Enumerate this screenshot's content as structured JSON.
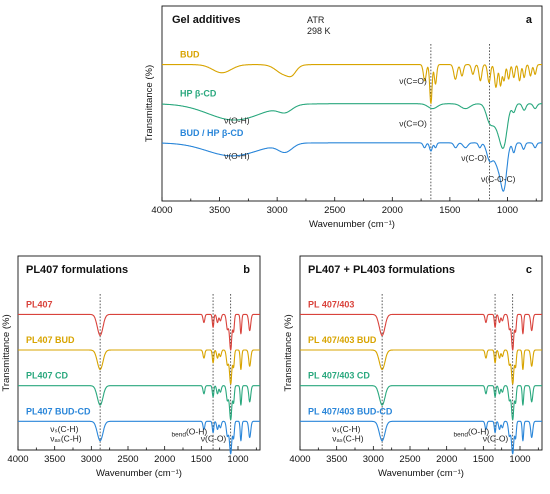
{
  "colors": {
    "red": "#d9433c",
    "yellow": "#d8a400",
    "green": "#2aa87e",
    "blue": "#2a86d9"
  },
  "chart_data": [
    {
      "type": "line",
      "panel": "a",
      "title": "Gel additives",
      "note_lines": [
        "ATR",
        "298 K"
      ],
      "xlabel": "Wavenumber (cm⁻¹)",
      "ylabel": "Transmittance (%)",
      "xlim": [
        4000,
        700
      ],
      "x_reversed": true,
      "xticks": [
        4000,
        3500,
        3000,
        2500,
        2000,
        1500,
        1000
      ],
      "series": [
        {
          "name": "BUD",
          "color": "yellow",
          "baseline": 0.8,
          "peaks": [
            [
              3480,
              0.05,
              80
            ],
            [
              2935,
              0.06,
              70
            ],
            [
              2870,
              0.03,
              35
            ],
            [
              1718,
              0.1,
              12
            ],
            [
              1665,
              0.24,
              10
            ],
            [
              1625,
              0.12,
              10
            ],
            [
              1452,
              0.09,
              14
            ],
            [
              1395,
              0.07,
              12
            ],
            [
              1300,
              0.06,
              12
            ],
            [
              1235,
              0.1,
              12
            ],
            [
              1160,
              0.11,
              12
            ],
            [
              1100,
              0.14,
              12
            ],
            [
              1060,
              0.13,
              10
            ],
            [
              1030,
              0.1,
              10
            ],
            [
              990,
              0.09,
              10
            ],
            [
              945,
              0.08,
              10
            ],
            [
              895,
              0.1,
              10
            ],
            [
              855,
              0.08,
              10
            ],
            [
              800,
              0.07,
              10
            ],
            [
              760,
              0.06,
              10
            ]
          ]
        },
        {
          "name": "HP β-CD",
          "color": "green",
          "baseline": 0.56,
          "peaks": [
            [
              3370,
              0.1,
              230
            ],
            [
              2930,
              0.04,
              60
            ],
            [
              1650,
              0.03,
              40
            ],
            [
              1365,
              0.03,
              40
            ],
            [
              1155,
              0.1,
              30
            ],
            [
              1080,
              0.14,
              40
            ],
            [
              1030,
              0.2,
              30
            ],
            [
              945,
              0.05,
              15
            ],
            [
              855,
              0.04,
              15
            ],
            [
              760,
              0.03,
              15
            ]
          ]
        },
        {
          "name": "BUD / HP β-CD",
          "color": "blue",
          "baseline": 0.32,
          "peaks": [
            [
              3390,
              0.08,
              220
            ],
            [
              2930,
              0.05,
              60
            ],
            [
              1720,
              0.03,
              12
            ],
            [
              1665,
              0.05,
              12
            ],
            [
              1625,
              0.03,
              10
            ],
            [
              1450,
              0.03,
              15
            ],
            [
              1365,
              0.03,
              20
            ],
            [
              1240,
              0.03,
              12
            ],
            [
              1155,
              0.1,
              25
            ],
            [
              1080,
              0.14,
              35
            ],
            [
              1030,
              0.24,
              25
            ],
            [
              945,
              0.06,
              12
            ],
            [
              860,
              0.04,
              12
            ],
            [
              760,
              0.03,
              12
            ]
          ]
        }
      ],
      "annotations": [
        {
          "text": "ν(C=O)",
          "x": 1700,
          "y": 0.68,
          "anchor": "end"
        },
        {
          "text": "ν(C=O)",
          "x": 1700,
          "y": 0.42,
          "anchor": "end"
        },
        {
          "text": "ν(O-H)",
          "x": 3350,
          "y": 0.44,
          "anchor": "middle"
        },
        {
          "text": "ν(O-H)",
          "x": 3350,
          "y": 0.22,
          "anchor": "middle"
        },
        {
          "text": "ν(C-O)",
          "x": 1290,
          "y": 0.21,
          "anchor": "middle"
        },
        {
          "text": "ν(C-O-C)",
          "x": 1080,
          "y": 0.08,
          "anchor": "middle"
        }
      ],
      "guide_lines": [
        1665,
        1155
      ]
    },
    {
      "type": "line",
      "panel": "b",
      "title": "PL407 formulations",
      "xlabel": "Wavenumber (cm⁻¹)",
      "ylabel": "Transmittance (%)",
      "xlim": [
        4000,
        700
      ],
      "x_reversed": true,
      "xticks": [
        4000,
        3500,
        3000,
        2500,
        2000,
        1500,
        1000
      ],
      "series": [
        {
          "name": "PL407",
          "color": "red",
          "baseline": 0.8,
          "peaks": [
            [
              2880,
              0.13,
              38
            ],
            [
              1465,
              0.05,
              12
            ],
            [
              1340,
              0.08,
              10
            ],
            [
              1280,
              0.05,
              12
            ],
            [
              1240,
              0.04,
              12
            ],
            [
              1145,
              0.09,
              14
            ],
            [
              1100,
              0.22,
              16
            ],
            [
              1060,
              0.1,
              10
            ],
            [
              960,
              0.12,
              10
            ],
            [
              840,
              0.1,
              14
            ]
          ]
        },
        {
          "name": "PL407 BUD",
          "color": "yellow",
          "baseline": 0.58,
          "peaks": [
            [
              2880,
              0.12,
              38
            ],
            [
              1465,
              0.05,
              12
            ],
            [
              1340,
              0.08,
              10
            ],
            [
              1280,
              0.05,
              12
            ],
            [
              1240,
              0.04,
              12
            ],
            [
              1145,
              0.09,
              14
            ],
            [
              1100,
              0.21,
              16
            ],
            [
              1060,
              0.1,
              10
            ],
            [
              960,
              0.12,
              10
            ],
            [
              840,
              0.1,
              14
            ]
          ]
        },
        {
          "name": "PL407 CD",
          "color": "green",
          "baseline": 0.36,
          "peaks": [
            [
              2880,
              0.12,
              38
            ],
            [
              1465,
              0.05,
              12
            ],
            [
              1340,
              0.07,
              10
            ],
            [
              1280,
              0.05,
              12
            ],
            [
              1240,
              0.04,
              12
            ],
            [
              1145,
              0.09,
              14
            ],
            [
              1100,
              0.21,
              16
            ],
            [
              1060,
              0.1,
              10
            ],
            [
              960,
              0.12,
              10
            ],
            [
              840,
              0.1,
              14
            ]
          ]
        },
        {
          "name": "PL407 BUD-CD",
          "color": "blue",
          "baseline": 0.14,
          "peaks": [
            [
              2880,
              0.12,
              38
            ],
            [
              1465,
              0.05,
              12
            ],
            [
              1340,
              0.07,
              10
            ],
            [
              1280,
              0.05,
              12
            ],
            [
              1240,
              0.04,
              12
            ],
            [
              1145,
              0.09,
              14
            ],
            [
              1100,
              0.2,
              16
            ],
            [
              1060,
              0.1,
              10
            ],
            [
              960,
              0.12,
              10
            ],
            [
              840,
              0.1,
              14
            ]
          ]
        }
      ],
      "annotations": [
        {
          "text": "νₛ(C-H)",
          "x": 3560,
          "y": 0.075,
          "anchor": "start"
        },
        {
          "text": "νₐₛ(C-H)",
          "x": 3560,
          "y": 0.015,
          "anchor": "start"
        },
        {
          "text": "bend(O-H)",
          "x": 1420,
          "y": 0.06,
          "anchor": "end",
          "small_prefix": true
        },
        {
          "text": "ν(C-O)",
          "x": 1160,
          "y": 0.015,
          "anchor": "end"
        }
      ],
      "guide_lines": [
        2880,
        1340,
        1100
      ]
    },
    {
      "type": "line",
      "panel": "c",
      "title": "PL407 + PL403 formulations",
      "xlabel": "Wavenumber (cm⁻¹)",
      "ylabel": "Transmittance (%)",
      "xlim": [
        4000,
        700
      ],
      "x_reversed": true,
      "xticks": [
        4000,
        3500,
        3000,
        2500,
        2000,
        1500,
        1000
      ],
      "series": [
        {
          "name": "PL 407/403",
          "color": "red",
          "baseline": 0.8,
          "peaks": [
            [
              2880,
              0.13,
              38
            ],
            [
              1465,
              0.05,
              12
            ],
            [
              1340,
              0.08,
              10
            ],
            [
              1280,
              0.05,
              12
            ],
            [
              1240,
              0.04,
              12
            ],
            [
              1145,
              0.09,
              14
            ],
            [
              1100,
              0.22,
              16
            ],
            [
              1060,
              0.1,
              10
            ],
            [
              960,
              0.12,
              10
            ],
            [
              840,
              0.1,
              14
            ]
          ]
        },
        {
          "name": "PL 407/403 BUD",
          "color": "yellow",
          "baseline": 0.58,
          "peaks": [
            [
              2880,
              0.12,
              38
            ],
            [
              1465,
              0.05,
              12
            ],
            [
              1340,
              0.08,
              10
            ],
            [
              1280,
              0.05,
              12
            ],
            [
              1240,
              0.04,
              12
            ],
            [
              1145,
              0.09,
              14
            ],
            [
              1100,
              0.21,
              16
            ],
            [
              1060,
              0.1,
              10
            ],
            [
              960,
              0.12,
              10
            ],
            [
              840,
              0.1,
              14
            ]
          ]
        },
        {
          "name": "PL 407/403 CD",
          "color": "green",
          "baseline": 0.36,
          "peaks": [
            [
              2880,
              0.12,
              38
            ],
            [
              1465,
              0.05,
              12
            ],
            [
              1340,
              0.07,
              10
            ],
            [
              1280,
              0.05,
              12
            ],
            [
              1240,
              0.04,
              12
            ],
            [
              1145,
              0.09,
              14
            ],
            [
              1100,
              0.21,
              16
            ],
            [
              1060,
              0.1,
              10
            ],
            [
              960,
              0.12,
              10
            ],
            [
              840,
              0.1,
              14
            ]
          ]
        },
        {
          "name": "PL 407/403 BUD-CD",
          "color": "blue",
          "baseline": 0.14,
          "peaks": [
            [
              2880,
              0.12,
              38
            ],
            [
              1465,
              0.05,
              12
            ],
            [
              1340,
              0.07,
              10
            ],
            [
              1280,
              0.05,
              12
            ],
            [
              1240,
              0.04,
              12
            ],
            [
              1145,
              0.09,
              14
            ],
            [
              1100,
              0.2,
              16
            ],
            [
              1060,
              0.1,
              10
            ],
            [
              960,
              0.12,
              10
            ],
            [
              840,
              0.1,
              14
            ]
          ]
        }
      ],
      "annotations": [
        {
          "text": "νₛ(C-H)",
          "x": 3560,
          "y": 0.075,
          "anchor": "start"
        },
        {
          "text": "νₐₛ(C-H)",
          "x": 3560,
          "y": 0.015,
          "anchor": "start"
        },
        {
          "text": "bend(O-H)",
          "x": 1420,
          "y": 0.06,
          "anchor": "end",
          "small_prefix": true
        },
        {
          "text": "ν(C-O)",
          "x": 1160,
          "y": 0.015,
          "anchor": "end"
        }
      ],
      "guide_lines": [
        2880,
        1340,
        1100
      ]
    }
  ]
}
